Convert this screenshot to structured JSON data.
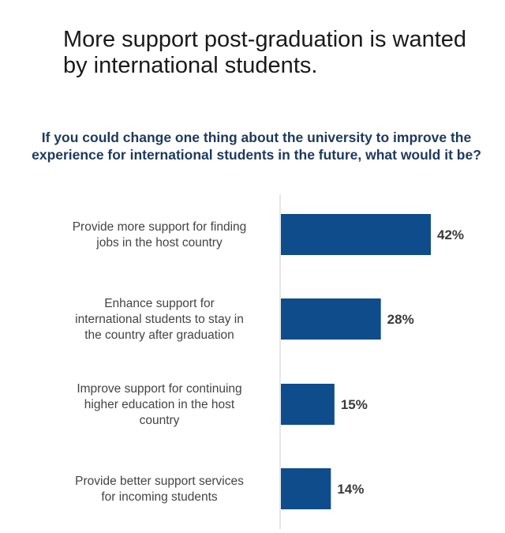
{
  "headline": "More support post-graduation is wanted by international students.",
  "chart_data": {
    "type": "bar",
    "orientation": "horizontal",
    "title": "If you could change one thing about the university to improve the experience for international students in the future, what would it be?",
    "categories": [
      [
        "Provide more support for finding",
        "jobs in the host country"
      ],
      [
        "Enhance support for",
        "international students to stay in",
        "the country after graduation"
      ],
      [
        "Improve support for continuing",
        "higher education in the host",
        "country"
      ],
      [
        "Provide better support services",
        "for incoming students"
      ]
    ],
    "values": [
      42,
      28,
      15,
      14
    ],
    "value_labels": [
      "42%",
      "28%",
      "15%",
      "14%"
    ],
    "unit": "%",
    "bar_color": "#0f4c8c",
    "axis_color": "#cfcfcf",
    "grid": false,
    "legend": "none"
  }
}
